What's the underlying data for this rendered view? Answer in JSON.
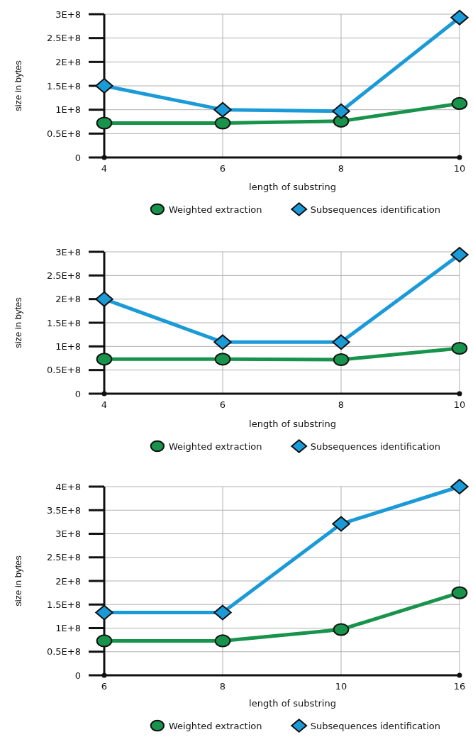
{
  "chart_data": [
    {
      "type": "line",
      "xlabel": "length of substring",
      "ylabel": "size in bytes",
      "categories": [
        "4",
        "6",
        "8",
        "10"
      ],
      "ylim": [
        0,
        300000000
      ],
      "yticks": [
        {
          "value": 0,
          "label": "0"
        },
        {
          "value": 50000000,
          "label": "0.5E+8"
        },
        {
          "value": 100000000,
          "label": "1E+8"
        },
        {
          "value": 150000000,
          "label": "1.5E+8"
        },
        {
          "value": 200000000,
          "label": "2E+8"
        },
        {
          "value": 250000000,
          "label": "2.5E+8"
        },
        {
          "value": 300000000,
          "label": "3E+8"
        }
      ],
      "grid": true,
      "legend": "bottom",
      "series": [
        {
          "name": "Weighted extraction",
          "color": "#17934b",
          "marker": "circle",
          "values": [
            72000000,
            72000000,
            76000000,
            113000000
          ]
        },
        {
          "name": "Subsequences identification",
          "color": "#1b9ad8",
          "marker": "diamond",
          "values": [
            150000000,
            100000000,
            97000000,
            293000000
          ]
        }
      ]
    },
    {
      "type": "line",
      "xlabel": "length of substring",
      "ylabel": "size in bytes",
      "categories": [
        "4",
        "6",
        "8",
        "10"
      ],
      "ylim": [
        0,
        300000000
      ],
      "yticks": [
        {
          "value": 0,
          "label": "0"
        },
        {
          "value": 50000000,
          "label": "0.5E+8"
        },
        {
          "value": 100000000,
          "label": "1E+8"
        },
        {
          "value": 150000000,
          "label": "1.5E+8"
        },
        {
          "value": 200000000,
          "label": "2E+8"
        },
        {
          "value": 250000000,
          "label": "2.5E+8"
        },
        {
          "value": 300000000,
          "label": "3E+8"
        }
      ],
      "grid": true,
      "legend": "bottom",
      "series": [
        {
          "name": "Weighted extraction",
          "color": "#17934b",
          "marker": "circle",
          "values": [
            73000000,
            73000000,
            72000000,
            96000000
          ]
        },
        {
          "name": "Subsequences identification",
          "color": "#1b9ad8",
          "marker": "diamond",
          "values": [
            200000000,
            109000000,
            109000000,
            294000000
          ]
        }
      ]
    },
    {
      "type": "line",
      "xlabel": "length of substring",
      "ylabel": "size in bytes",
      "categories": [
        "6",
        "8",
        "10",
        "16"
      ],
      "ylim": [
        0,
        400000000
      ],
      "yticks": [
        {
          "value": 0,
          "label": "0"
        },
        {
          "value": 50000000,
          "label": "0.5E+8"
        },
        {
          "value": 100000000,
          "label": "1E+8"
        },
        {
          "value": 150000000,
          "label": "1.5E+8"
        },
        {
          "value": 200000000,
          "label": "2E+8"
        },
        {
          "value": 250000000,
          "label": "2.5E+8"
        },
        {
          "value": 300000000,
          "label": "3E+8"
        },
        {
          "value": 350000000,
          "label": "3.5E+8"
        },
        {
          "value": 400000000,
          "label": "4E+8"
        }
      ],
      "grid": true,
      "legend": "bottom",
      "series": [
        {
          "name": "Weighted extraction",
          "color": "#17934b",
          "marker": "circle",
          "values": [
            73000000,
            73000000,
            97000000,
            175000000
          ]
        },
        {
          "name": "Subsequences identification",
          "color": "#1b9ad8",
          "marker": "diamond",
          "values": [
            133000000,
            133000000,
            321000000,
            400000000
          ]
        }
      ]
    }
  ]
}
